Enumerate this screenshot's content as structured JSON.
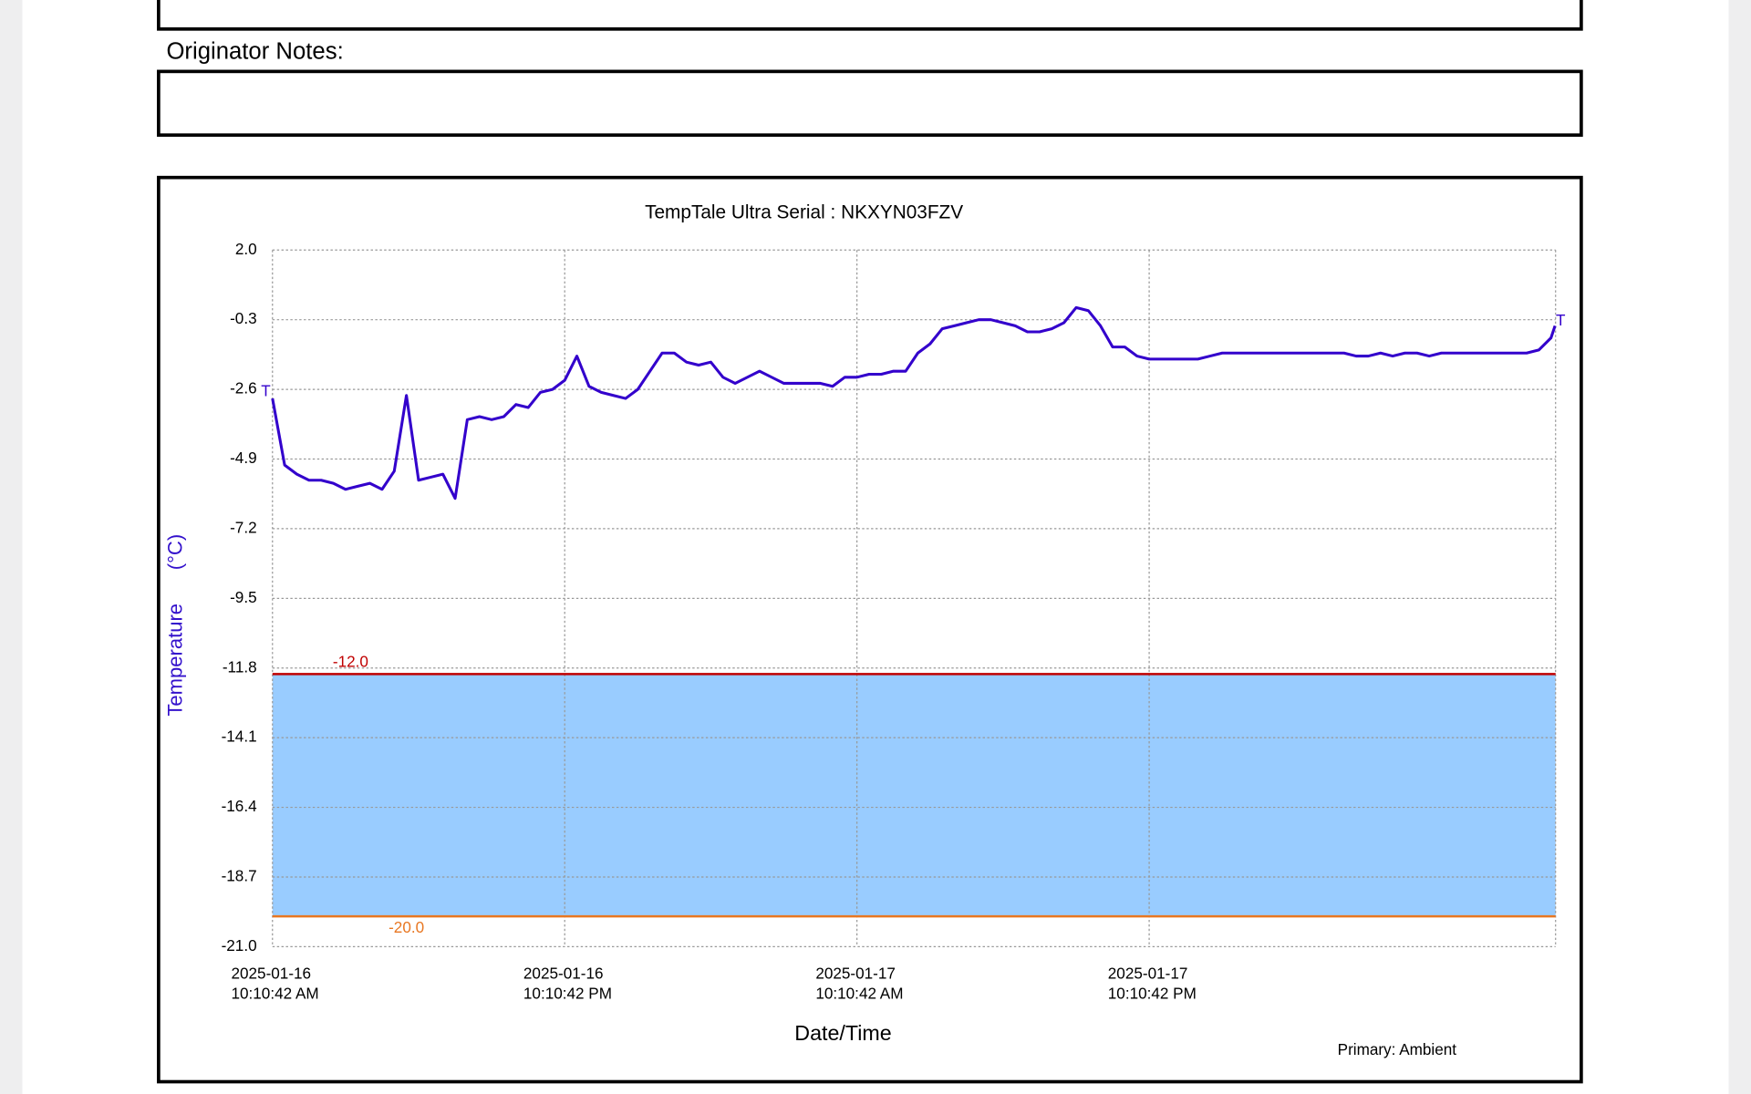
{
  "notes_label": "Originator Notes:",
  "footer_note": "Primary: Ambient",
  "chart_data": {
    "type": "line",
    "title": "TempTale Ultra  Serial : NKXYN03FZV",
    "xlabel": "Date/Time",
    "ylabel": "Temperature      (°C)",
    "color": "#3300cc",
    "grid": true,
    "start_marker": "T",
    "end_marker": "T",
    "band_color": "#99ccff",
    "thresholds": [
      {
        "value": -12,
        "label": "-12.0",
        "color": "#c00000"
      },
      {
        "value": -20,
        "label": "-20.0",
        "color": "#e87722"
      }
    ],
    "xlim": [
      "2025-01-16T10:10:42",
      "2025-01-18T14:52:00"
    ],
    "xticks": [
      {
        "value": "2025-01-16T10:10:42",
        "label": [
          "2025-01-16",
          "10:10:42 AM"
        ]
      },
      {
        "value": "2025-01-16T22:10:42",
        "label": [
          "2025-01-16",
          "10:10:42 PM"
        ]
      },
      {
        "value": "2025-01-17T10:10:42",
        "label": [
          "2025-01-17",
          "10:10:42 AM"
        ]
      },
      {
        "value": "2025-01-17T22:10:42",
        "label": [
          "2025-01-17",
          "10:10:42 PM"
        ]
      }
    ],
    "ylim": [
      -21,
      2
    ],
    "yticks": [
      {
        "value": 2,
        "label": "2.0"
      },
      -0.3,
      -2.6,
      -4.9,
      -7.2,
      -9.5,
      -11.8,
      -14.1,
      -16.4,
      -18.7,
      {
        "value": -21,
        "label": "-21.0"
      }
    ],
    "x": [
      "2025-01-16T10:10:42",
      "2025-01-16T10:40:42",
      "2025-01-16T11:10:42",
      "2025-01-16T11:40:42",
      "2025-01-16T12:10:42",
      "2025-01-16T12:40:42",
      "2025-01-16T13:10:42",
      "2025-01-16T13:40:42",
      "2025-01-16T14:10:42",
      "2025-01-16T14:40:42",
      "2025-01-16T15:10:42",
      "2025-01-16T15:40:42",
      "2025-01-16T16:10:42",
      "2025-01-16T16:40:42",
      "2025-01-16T17:10:42",
      "2025-01-16T17:40:42",
      "2025-01-16T18:10:42",
      "2025-01-16T18:40:42",
      "2025-01-16T19:10:42",
      "2025-01-16T19:40:42",
      "2025-01-16T20:10:42",
      "2025-01-16T20:40:42",
      "2025-01-16T21:10:42",
      "2025-01-16T21:40:42",
      "2025-01-16T22:10:42",
      "2025-01-16T22:40:42",
      "2025-01-16T23:10:42",
      "2025-01-16T23:40:42",
      "2025-01-17T00:10:42",
      "2025-01-17T00:40:42",
      "2025-01-17T01:10:42",
      "2025-01-17T01:40:42",
      "2025-01-17T02:10:42",
      "2025-01-17T02:40:42",
      "2025-01-17T03:10:42",
      "2025-01-17T03:40:42",
      "2025-01-17T04:10:42",
      "2025-01-17T04:40:42",
      "2025-01-17T05:10:42",
      "2025-01-17T05:40:42",
      "2025-01-17T06:10:42",
      "2025-01-17T06:40:42",
      "2025-01-17T07:10:42",
      "2025-01-17T07:40:42",
      "2025-01-17T08:10:42",
      "2025-01-17T08:40:42",
      "2025-01-17T09:10:42",
      "2025-01-17T09:40:42",
      "2025-01-17T10:10:42",
      "2025-01-17T10:40:42",
      "2025-01-17T11:10:42",
      "2025-01-17T11:40:42",
      "2025-01-17T12:10:42",
      "2025-01-17T12:40:42",
      "2025-01-17T13:10:42",
      "2025-01-17T13:40:42",
      "2025-01-17T14:10:42",
      "2025-01-17T14:40:42",
      "2025-01-17T15:10:42",
      "2025-01-17T15:40:42",
      "2025-01-17T16:10:42",
      "2025-01-17T16:40:42",
      "2025-01-17T17:10:42",
      "2025-01-17T17:40:42",
      "2025-01-17T18:10:42",
      "2025-01-17T18:40:42",
      "2025-01-17T19:10:42",
      "2025-01-17T19:40:42",
      "2025-01-17T20:10:42",
      "2025-01-17T20:40:42",
      "2025-01-17T21:10:42",
      "2025-01-17T21:40:42",
      "2025-01-17T22:10:42",
      "2025-01-17T22:40:42",
      "2025-01-17T23:10:42",
      "2025-01-17T23:40:42",
      "2025-01-18T00:10:42",
      "2025-01-18T00:40:42",
      "2025-01-18T01:10:42",
      "2025-01-18T01:40:42",
      "2025-01-18T02:10:42",
      "2025-01-18T02:40:42",
      "2025-01-18T03:10:42",
      "2025-01-18T03:40:42",
      "2025-01-18T04:10:42",
      "2025-01-18T04:40:42",
      "2025-01-18T05:10:42",
      "2025-01-18T05:40:42",
      "2025-01-18T06:10:42",
      "2025-01-18T06:40:42",
      "2025-01-18T07:10:42",
      "2025-01-18T07:40:42",
      "2025-01-18T08:10:42",
      "2025-01-18T08:40:42",
      "2025-01-18T09:10:42",
      "2025-01-18T09:40:42",
      "2025-01-18T10:10:42",
      "2025-01-18T10:40:42",
      "2025-01-18T11:10:42",
      "2025-01-18T11:40:42",
      "2025-01-18T12:10:42",
      "2025-01-18T12:40:42",
      "2025-01-18T13:10:42",
      "2025-01-18T13:40:42",
      "2025-01-18T14:10:42",
      "2025-01-18T14:40:42",
      "2025-01-18T14:50:42"
    ],
    "values": [
      -2.9,
      -5.1,
      -5.4,
      -5.6,
      -5.6,
      -5.7,
      -5.9,
      -5.8,
      -5.7,
      -5.9,
      -5.3,
      -2.8,
      -5.6,
      -5.5,
      -5.4,
      -6.2,
      -3.6,
      -3.5,
      -3.6,
      -3.5,
      -3.1,
      -3.2,
      -2.7,
      -2.6,
      -2.3,
      -1.5,
      -2.5,
      -2.7,
      -2.8,
      -2.9,
      -2.6,
      -2.0,
      -1.4,
      -1.4,
      -1.7,
      -1.8,
      -1.7,
      -2.2,
      -2.4,
      -2.2,
      -2.0,
      -2.2,
      -2.4,
      -2.4,
      -2.4,
      -2.4,
      -2.5,
      -2.2,
      -2.2,
      -2.1,
      -2.1,
      -2.0,
      -2.0,
      -1.4,
      -1.1,
      -0.6,
      -0.5,
      -0.4,
      -0.3,
      -0.3,
      -0.4,
      -0.5,
      -0.7,
      -0.7,
      -0.6,
      -0.4,
      0.1,
      0.0,
      -0.5,
      -1.2,
      -1.2,
      -1.5,
      -1.6,
      -1.6,
      -1.6,
      -1.6,
      -1.6,
      -1.5,
      -1.4,
      -1.4,
      -1.4,
      -1.4,
      -1.4,
      -1.4,
      -1.4,
      -1.4,
      -1.4,
      -1.4,
      -1.4,
      -1.5,
      -1.5,
      -1.4,
      -1.5,
      -1.4,
      -1.4,
      -1.5,
      -1.4,
      -1.4,
      -1.4,
      -1.4,
      -1.4,
      -1.4,
      -1.4,
      -1.4,
      -1.3,
      -0.9,
      -0.5
    ]
  }
}
